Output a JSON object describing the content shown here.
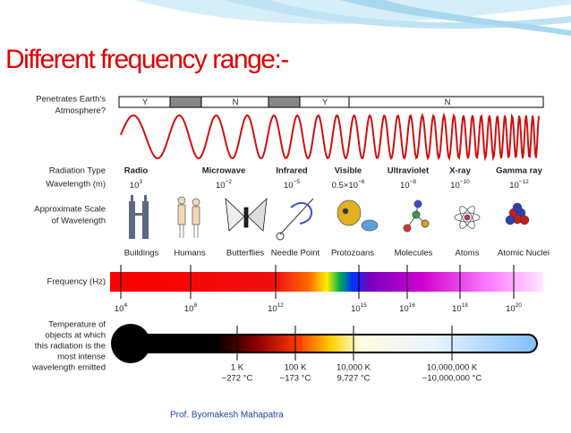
{
  "title": "Different frequency range:-",
  "atmosphere": {
    "label": [
      "Penetrates Earth's",
      "Atmosphere?"
    ],
    "bands": [
      "Y",
      "N",
      "Y",
      "N"
    ]
  },
  "row_labels": {
    "radiation_type": "Radiation Type",
    "wavelength": "Wavelength (m)",
    "scale": [
      "Approximate Scale",
      "of Wavelength"
    ],
    "frequency": "Frequency (Hz)",
    "temperature": [
      "Temperature of",
      "objects at which",
      "this radiation is the",
      "most intense",
      "wavelength emitted"
    ]
  },
  "radiation": [
    {
      "type": "Radio",
      "wavelength": {
        "base": "10",
        "exp": "3"
      }
    },
    {
      "type": "Microwave",
      "wavelength": {
        "base": "10",
        "exp": "−2"
      }
    },
    {
      "type": "Infrared",
      "wavelength": {
        "base": "10",
        "exp": "−5"
      }
    },
    {
      "type": "Visible",
      "wavelength": {
        "base": "0.5×10",
        "exp": "−6"
      }
    },
    {
      "type": "Ultraviolet",
      "wavelength": {
        "base": "10",
        "exp": "−8"
      }
    },
    {
      "type": "X-ray",
      "wavelength": {
        "base": "10",
        "exp": "−10"
      }
    },
    {
      "type": "Gamma ray",
      "wavelength": {
        "base": "10",
        "exp": "−12"
      }
    }
  ],
  "scale_objects": [
    "Buildings",
    "Humans",
    "Butterflies",
    "Needle Point",
    "Protozoans",
    "Molecules",
    "Atoms",
    "Atomic Nuclei"
  ],
  "frequencies": [
    {
      "base": "10",
      "exp": "4"
    },
    {
      "base": "10",
      "exp": "8"
    },
    {
      "base": "10",
      "exp": "12"
    },
    {
      "base": "10",
      "exp": "15"
    },
    {
      "base": "10",
      "exp": "16"
    },
    {
      "base": "10",
      "exp": "18"
    },
    {
      "base": "10",
      "exp": "20"
    }
  ],
  "temperatures": [
    {
      "kelvin": "1 K",
      "celsius": "−272 °C"
    },
    {
      "kelvin": "100 K",
      "celsius": "−173 °C"
    },
    {
      "kelvin": "10,000 K",
      "celsius": "9,727 °C"
    },
    {
      "kelvin": "10,000,000 K",
      "celsius": "~10,000,000 °C"
    }
  ],
  "footer": "Prof. Byomakesh Mahapatra"
}
